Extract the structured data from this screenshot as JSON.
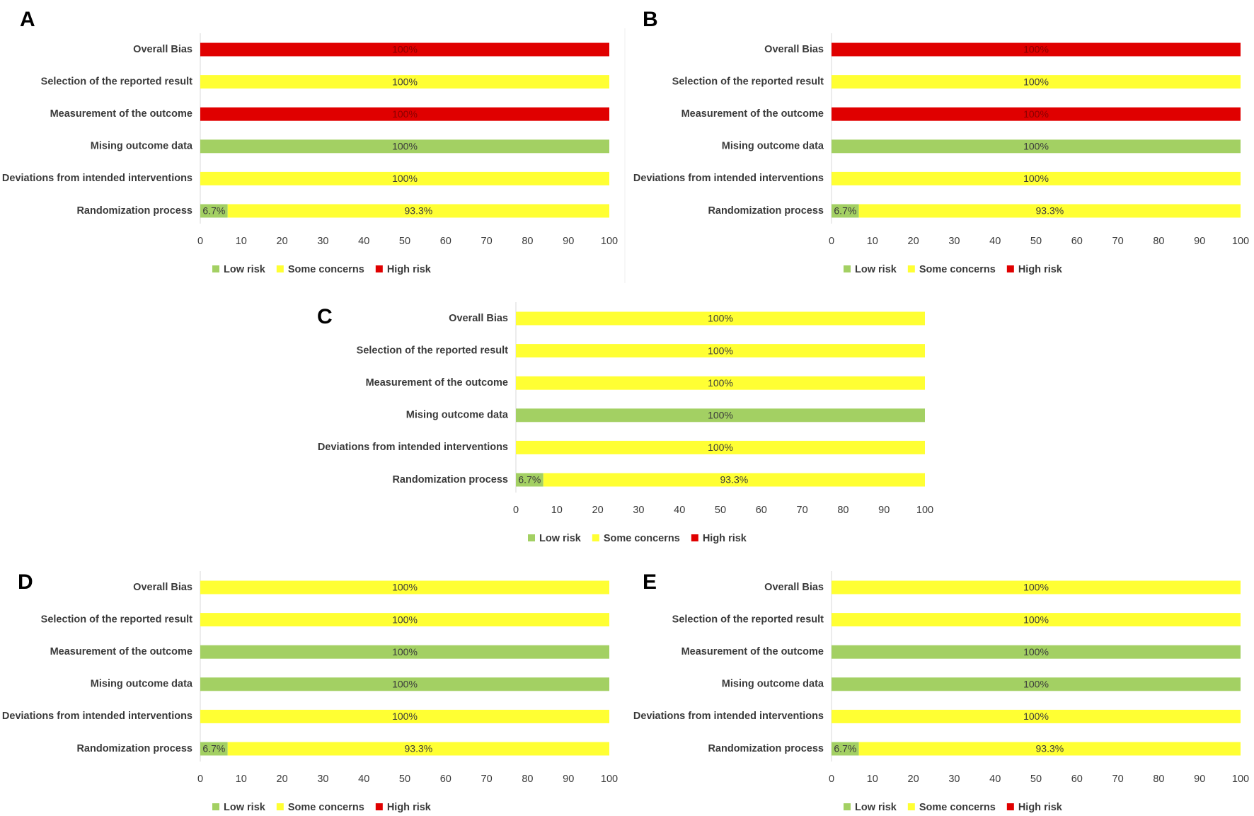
{
  "colors": {
    "low": "#a3d063",
    "some": "#ffff33",
    "high": "#e00000",
    "axis": "#d9d9d9",
    "text": "#3a3a3a"
  },
  "legend": [
    "Low risk",
    "Some concerns",
    "High risk"
  ],
  "chart_data": [
    {
      "panel": "A",
      "type": "bar",
      "orientation": "horizontal",
      "stacked": true,
      "categories": [
        "Overall Bias",
        "Selection of the reported result",
        "Measurement of the outcome",
        "Mising outcome data",
        "Deviations from intended interventions",
        "Randomization process"
      ],
      "series": [
        {
          "name": "Low risk",
          "values": [
            0,
            0,
            0,
            100,
            0,
            6.7
          ],
          "labels": [
            "",
            "",
            "",
            "100%",
            "",
            "6.7%"
          ]
        },
        {
          "name": "Some concerns",
          "values": [
            0,
            100,
            0,
            0,
            100,
            93.3
          ],
          "labels": [
            "",
            "100%",
            "",
            "",
            "100%",
            "93.3%"
          ]
        },
        {
          "name": "High risk",
          "values": [
            100,
            0,
            100,
            0,
            0,
            0
          ],
          "labels": [
            "100%",
            "",
            "100%",
            "",
            "",
            ""
          ]
        }
      ],
      "xlim": [
        0,
        100
      ],
      "xticks": [
        "0",
        "10",
        "20",
        "30",
        "40",
        "50",
        "60",
        "70",
        "80",
        "90",
        "100"
      ]
    },
    {
      "panel": "B",
      "type": "bar",
      "orientation": "horizontal",
      "stacked": true,
      "categories": [
        "Overall Bias",
        "Selection of the reported result",
        "Measurement of the outcome",
        "Mising outcome data",
        "Deviations from intended interventions",
        "Randomization process"
      ],
      "series": [
        {
          "name": "Low risk",
          "values": [
            0,
            0,
            0,
            100,
            0,
            6.7
          ],
          "labels": [
            "",
            "",
            "",
            "100%",
            "",
            "6.7%"
          ]
        },
        {
          "name": "Some concerns",
          "values": [
            0,
            100,
            0,
            0,
            100,
            93.3
          ],
          "labels": [
            "",
            "100%",
            "",
            "",
            "100%",
            "93.3%"
          ]
        },
        {
          "name": "High risk",
          "values": [
            100,
            0,
            100,
            0,
            0,
            0
          ],
          "labels": [
            "100%",
            "",
            "100%",
            "",
            "",
            ""
          ]
        }
      ],
      "xlim": [
        0,
        100
      ],
      "xticks": [
        "0",
        "10",
        "20",
        "30",
        "40",
        "50",
        "60",
        "70",
        "80",
        "90",
        "100"
      ]
    },
    {
      "panel": "C",
      "type": "bar",
      "orientation": "horizontal",
      "stacked": true,
      "categories": [
        "Overall Bias",
        "Selection of the reported result",
        "Measurement of the outcome",
        "Mising outcome data",
        "Deviations from intended interventions",
        "Randomization process"
      ],
      "series": [
        {
          "name": "Low risk",
          "values": [
            0,
            0,
            0,
            100,
            0,
            6.7
          ],
          "labels": [
            "",
            "",
            "",
            "100%",
            "",
            "6.7%"
          ]
        },
        {
          "name": "Some concerns",
          "values": [
            100,
            100,
            100,
            0,
            100,
            93.3
          ],
          "labels": [
            "100%",
            "100%",
            "100%",
            "",
            "100%",
            "93.3%"
          ]
        },
        {
          "name": "High risk",
          "values": [
            0,
            0,
            0,
            0,
            0,
            0
          ],
          "labels": [
            "",
            "",
            "",
            "",
            "",
            ""
          ]
        }
      ],
      "xlim": [
        0,
        100
      ],
      "xticks": [
        "0",
        "10",
        "20",
        "30",
        "40",
        "50",
        "60",
        "70",
        "80",
        "90",
        "100"
      ]
    },
    {
      "panel": "D",
      "type": "bar",
      "orientation": "horizontal",
      "stacked": true,
      "categories": [
        "Overall Bias",
        "Selection of the reported result",
        "Measurement of the outcome",
        "Mising outcome data",
        "Deviations from intended interventions",
        "Randomization process"
      ],
      "series": [
        {
          "name": "Low risk",
          "values": [
            0,
            0,
            100,
            100,
            0,
            6.7
          ],
          "labels": [
            "",
            "",
            "100%",
            "100%",
            "",
            "6.7%"
          ]
        },
        {
          "name": "Some concerns",
          "values": [
            100,
            100,
            0,
            0,
            100,
            93.3
          ],
          "labels": [
            "100%",
            "100%",
            "",
            "",
            "100%",
            "93.3%"
          ]
        },
        {
          "name": "High risk",
          "values": [
            0,
            0,
            0,
            0,
            0,
            0
          ],
          "labels": [
            "",
            "",
            "",
            "",
            "",
            ""
          ]
        }
      ],
      "xlim": [
        0,
        100
      ],
      "xticks": [
        "0",
        "10",
        "20",
        "30",
        "40",
        "50",
        "60",
        "70",
        "80",
        "90",
        "100"
      ]
    },
    {
      "panel": "E",
      "type": "bar",
      "orientation": "horizontal",
      "stacked": true,
      "categories": [
        "Overall Bias",
        "Selection of the reported result",
        "Measurement of the outcome",
        "Mising outcome data",
        "Deviations from intended interventions",
        "Randomization process"
      ],
      "series": [
        {
          "name": "Low risk",
          "values": [
            0,
            0,
            100,
            100,
            0,
            6.7
          ],
          "labels": [
            "",
            "",
            "100%",
            "100%",
            "",
            "6.7%"
          ]
        },
        {
          "name": "Some concerns",
          "values": [
            100,
            100,
            0,
            0,
            100,
            93.3
          ],
          "labels": [
            "100%",
            "100%",
            "",
            "",
            "100%",
            "93.3%"
          ]
        },
        {
          "name": "High risk",
          "values": [
            0,
            0,
            0,
            0,
            0,
            0
          ],
          "labels": [
            "",
            "",
            "",
            "",
            "",
            ""
          ]
        }
      ],
      "xlim": [
        0,
        100
      ],
      "xticks": [
        "0",
        "10",
        "20",
        "30",
        "40",
        "50",
        "60",
        "70",
        "80",
        "90",
        "100"
      ]
    }
  ]
}
